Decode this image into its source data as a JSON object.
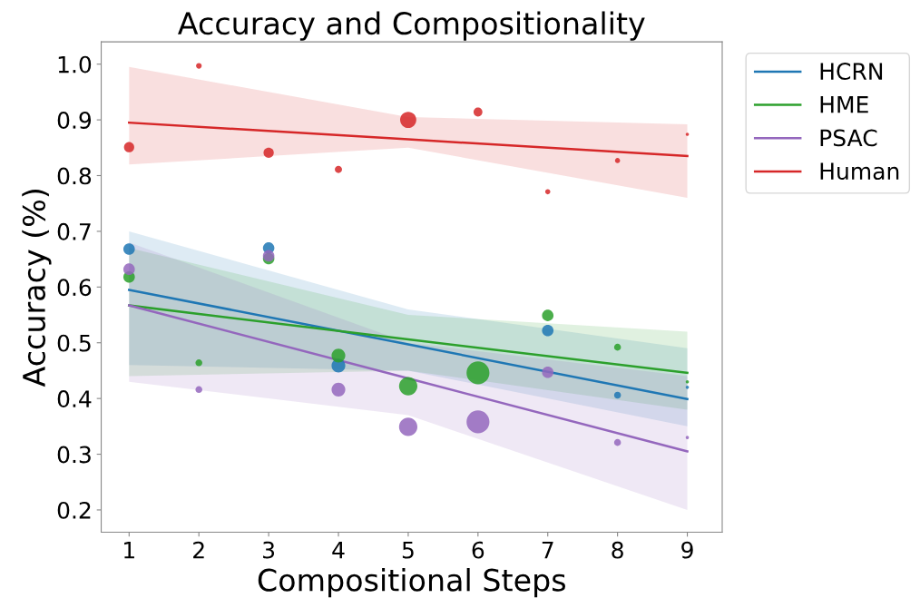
{
  "chart_data": {
    "type": "bubble",
    "title": "Accuracy and Compositionality",
    "xlabel": "Compositional Steps",
    "ylabel": "Accuracy (%)",
    "x": [
      1,
      2,
      3,
      4,
      5,
      6,
      7,
      8,
      9
    ],
    "series": [
      {
        "type": "line",
        "name": "HCRN",
        "color": "#1f77b4",
        "x": [
          1,
          5,
          9
        ],
        "values": [
          0.595,
          0.497,
          0.399
        ],
        "lower": [
          0.46,
          0.45,
          0.35
        ],
        "upper": [
          0.7,
          0.56,
          0.49
        ]
      },
      {
        "type": "line",
        "name": "HME",
        "color": "#2ca02c",
        "x": [
          1,
          5,
          9
        ],
        "values": [
          0.567,
          0.506,
          0.446
        ],
        "lower": [
          0.44,
          0.45,
          0.38
        ],
        "upper": [
          0.67,
          0.55,
          0.52
        ]
      },
      {
        "type": "line",
        "name": "PSAC",
        "color": "#9467bd",
        "x": [
          1,
          5,
          9
        ],
        "values": [
          0.567,
          0.436,
          0.305
        ],
        "lower": [
          0.43,
          0.37,
          0.2
        ],
        "upper": [
          0.68,
          0.5,
          0.44
        ]
      },
      {
        "type": "line",
        "name": "Human",
        "color": "#d62728",
        "x": [
          1,
          5,
          9
        ],
        "values": [
          0.895,
          0.865,
          0.835
        ],
        "lower": [
          0.82,
          0.85,
          0.76
        ],
        "upper": [
          0.995,
          0.905,
          0.892
        ]
      },
      {
        "color": "#1f77b4",
        "values": [
          0.668,
          null,
          0.67,
          0.459,
          null,
          null,
          0.522,
          0.406,
          0.42
        ],
        "sizes": [
          0.25,
          null,
          0.25,
          0.36,
          null,
          null,
          0.25,
          0.09,
          0.02
        ]
      },
      {
        "color": "#2ca02c",
        "values": [
          0.618,
          0.464,
          0.651,
          0.477,
          0.422,
          0.446,
          0.549,
          0.492,
          0.43
        ],
        "sizes": [
          0.25,
          0.09,
          0.25,
          0.36,
          0.64,
          1,
          0.25,
          0.09,
          0.02
        ]
      },
      {
        "color": "#9467bd",
        "values": [
          0.632,
          0.416,
          0.656,
          0.416,
          0.349,
          0.358,
          0.447,
          0.321,
          0.33
        ],
        "sizes": [
          0.25,
          0.09,
          0.25,
          0.36,
          0.64,
          1,
          0.25,
          0.09,
          0.02
        ]
      },
      {
        "color": "#d62728",
        "values": [
          0.851,
          0.997,
          0.841,
          0.811,
          0.9,
          0.914,
          0.771,
          0.827,
          0.874
        ],
        "sizes": [
          0.2,
          0.06,
          0.2,
          0.1,
          0.5,
          0.15,
          0.05,
          0.05,
          0.02
        ]
      }
    ],
    "xlim": [
      0.6,
      9.5
    ],
    "ylim": [
      0.16,
      1.04
    ],
    "xticks": [
      1,
      2,
      3,
      4,
      5,
      6,
      7,
      8,
      9
    ],
    "yticks": [
      0.2,
      0.3,
      0.4,
      0.5,
      0.6,
      0.7,
      0.8,
      0.9,
      {
        "value": 1,
        "label": "1.0"
      }
    ],
    "legend": "right",
    "grid": false
  }
}
